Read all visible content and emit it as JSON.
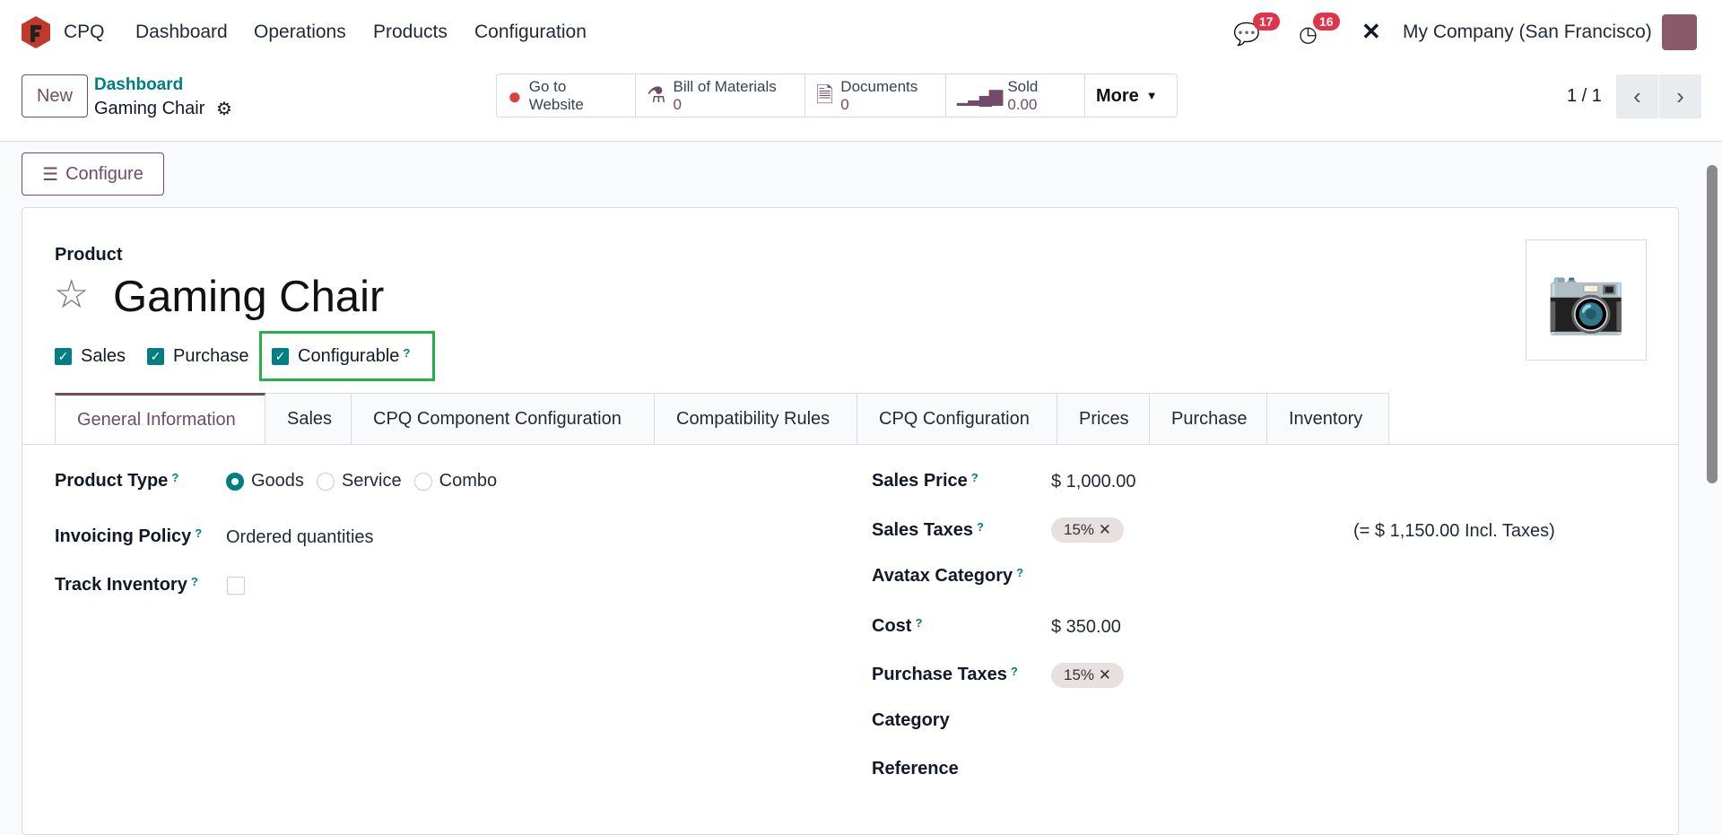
{
  "navbar": {
    "app": "CPQ",
    "menu": [
      "Dashboard",
      "Operations",
      "Products",
      "Configuration"
    ],
    "messages_count": "17",
    "activities_count": "16",
    "company": "My Company (San Francisco)"
  },
  "control": {
    "new_label": "New",
    "breadcrumb_parent": "Dashboard",
    "breadcrumb_current": "Gaming Chair",
    "stats": [
      {
        "label": "Go to",
        "label2": "Website"
      },
      {
        "label": "Bill of Materials",
        "value": "0"
      },
      {
        "label": "Documents",
        "value": "0"
      },
      {
        "label": "Sold",
        "value": "0.00"
      }
    ],
    "more_label": "More",
    "pager": "1 / 1"
  },
  "configure_label": "Configure",
  "form": {
    "product_label": "Product",
    "name": "Gaming Chair",
    "flags": [
      {
        "label": "Sales",
        "checked": true
      },
      {
        "label": "Purchase",
        "checked": true
      },
      {
        "label": "Configurable",
        "checked": true,
        "help": "?"
      }
    ],
    "tabs": [
      "General Information",
      "Sales",
      "CPQ Component Configuration",
      "Compatibility Rules",
      "CPQ Configuration",
      "Prices",
      "Purchase",
      "Inventory"
    ],
    "left": {
      "product_type_label": "Product Type",
      "product_type_options": [
        "Goods",
        "Service",
        "Combo"
      ],
      "product_type_selected": "Goods",
      "invoicing_policy_label": "Invoicing Policy",
      "invoicing_policy": "Ordered quantities",
      "track_inventory_label": "Track Inventory",
      "track_inventory": false
    },
    "right": {
      "sales_price_label": "Sales Price",
      "sales_price": "$ 1,000.00",
      "sales_taxes_label": "Sales Taxes",
      "sales_tax": "15%",
      "incl_taxes": "(= $ 1,150.00 Incl. Taxes)",
      "avatax_label": "Avatax Category",
      "cost_label": "Cost",
      "cost": "$ 350.00",
      "purchase_taxes_label": "Purchase Taxes",
      "purchase_tax": "15%",
      "category_label": "Category",
      "reference_label": "Reference"
    },
    "help": "?"
  },
  "colors": {
    "primary": "#714B67",
    "teal": "#017E84",
    "highlight": "#22b04b",
    "badge": "#e0344a"
  }
}
